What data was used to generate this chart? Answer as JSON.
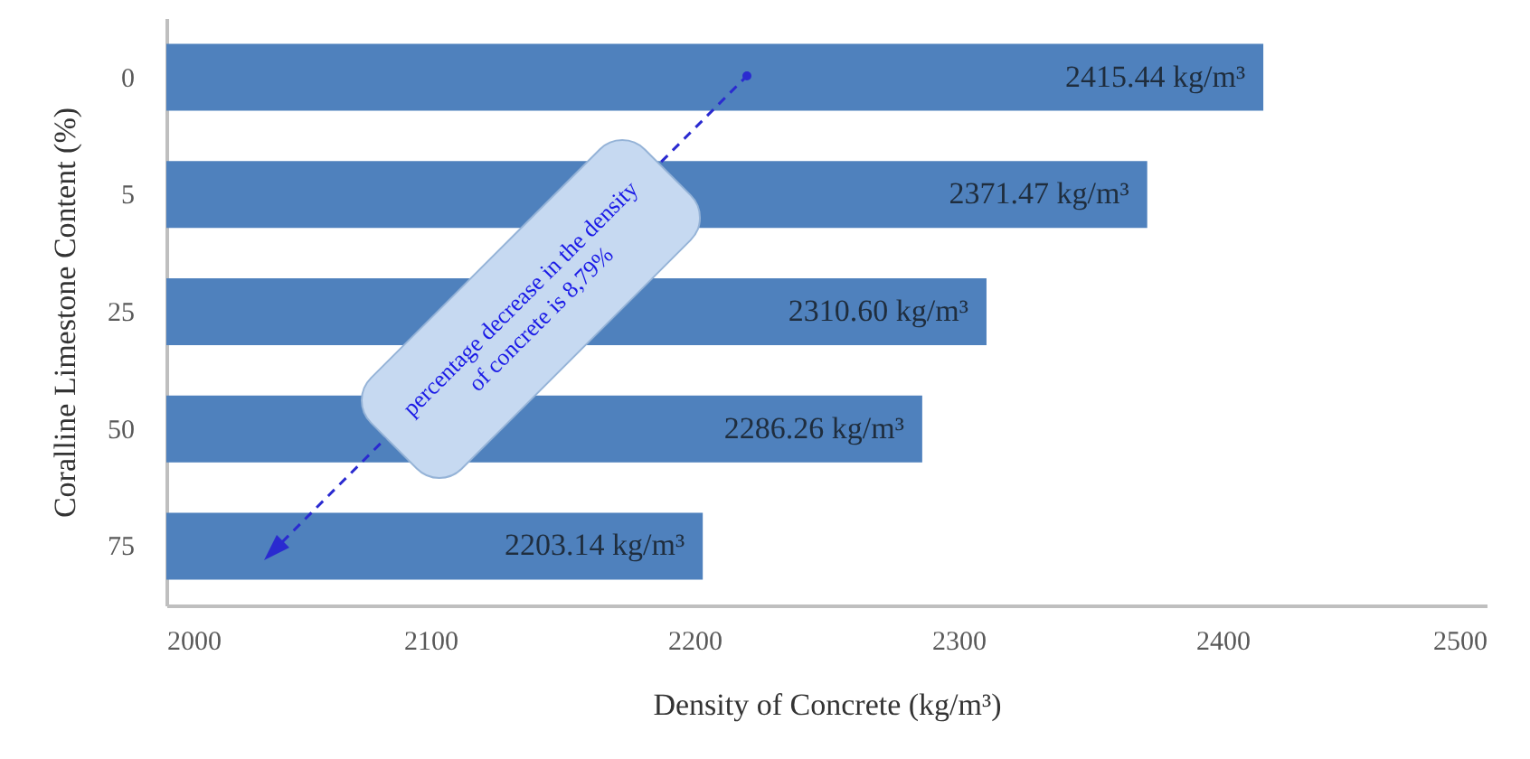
{
  "chart_data": {
    "type": "bar",
    "orientation": "horizontal",
    "categories": [
      "0",
      "5",
      "25",
      "50",
      "75"
    ],
    "values": [
      2415.44,
      2371.47,
      2310.6,
      2286.26,
      2203.14
    ],
    "value_labels": [
      "2415.44 kg/m³",
      "2371.47 kg/m³",
      "2310.60 kg/m³",
      "2286.26 kg/m³",
      "2203.14 kg/m³"
    ],
    "color": "#4f81bd",
    "xlim": [
      2000,
      2500
    ],
    "xticks": [
      2000,
      2100,
      2200,
      2300,
      2400,
      2500
    ],
    "xlabel": "Density of Concrete (kg/m³)",
    "ylabel": "Coralline Limestone Content (%)",
    "grid": false,
    "annotations": [
      "percentage decrease in the density of concrete is 8,79%"
    ]
  }
}
